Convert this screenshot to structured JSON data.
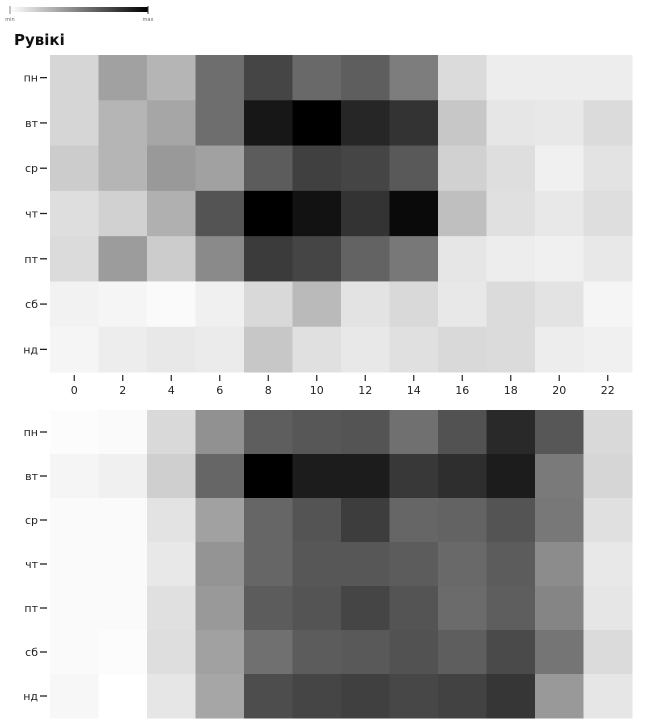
{
  "title": "Рувікі",
  "legend": {
    "min_label": "min",
    "max_label": "max",
    "min_color": "#ffffff",
    "max_color": "#000000"
  },
  "chart_data": [
    {
      "type": "heatmap",
      "title": "Рувікі",
      "x_ticks": [
        "0",
        "2",
        "4",
        "6",
        "8",
        "10",
        "12",
        "14",
        "16",
        "18",
        "20",
        "22"
      ],
      "y_categories": [
        "пн",
        "вт",
        "ср",
        "чт",
        "пт",
        "сб",
        "нд"
      ],
      "value_scale": "relative intensity 0 (min) – 100 (max)",
      "values": [
        [
          16,
          37,
          29,
          57,
          73,
          59,
          63,
          51,
          14,
          7,
          7,
          7
        ],
        [
          16,
          29,
          35,
          57,
          91,
          100,
          85,
          80,
          22,
          10,
          9,
          14
        ],
        [
          20,
          29,
          40,
          37,
          64,
          75,
          73,
          65,
          18,
          13,
          6,
          11
        ],
        [
          13,
          18,
          31,
          67,
          100,
          93,
          80,
          96,
          25,
          12,
          9,
          13
        ],
        [
          14,
          39,
          20,
          46,
          77,
          73,
          61,
          53,
          10,
          7,
          6,
          9
        ],
        [
          5,
          4,
          2,
          6,
          15,
          27,
          11,
          15,
          9,
          14,
          11,
          4
        ],
        [
          4,
          7,
          9,
          8,
          22,
          12,
          9,
          12,
          15,
          14,
          7,
          6
        ]
      ]
    },
    {
      "type": "heatmap",
      "y_categories": [
        "пн",
        "вт",
        "ср",
        "чт",
        "пт",
        "сб",
        "нд"
      ],
      "value_scale": "relative intensity 0 (min) – 100 (max)",
      "values": [
        [
          1,
          2,
          15,
          43,
          63,
          66,
          67,
          56,
          68,
          84,
          66,
          15
        ],
        [
          4,
          6,
          19,
          60,
          100,
          89,
          89,
          78,
          82,
          89,
          52,
          16
        ],
        [
          2,
          2,
          11,
          37,
          60,
          67,
          76,
          60,
          61,
          67,
          53,
          12
        ],
        [
          2,
          2,
          9,
          42,
          60,
          66,
          66,
          64,
          59,
          64,
          45,
          9
        ],
        [
          2,
          2,
          12,
          40,
          64,
          67,
          73,
          67,
          58,
          63,
          48,
          10
        ],
        [
          2,
          1,
          13,
          37,
          56,
          64,
          65,
          68,
          63,
          71,
          54,
          14
        ],
        [
          3,
          0,
          10,
          35,
          70,
          73,
          75,
          72,
          74,
          79,
          40,
          10
        ]
      ]
    }
  ]
}
